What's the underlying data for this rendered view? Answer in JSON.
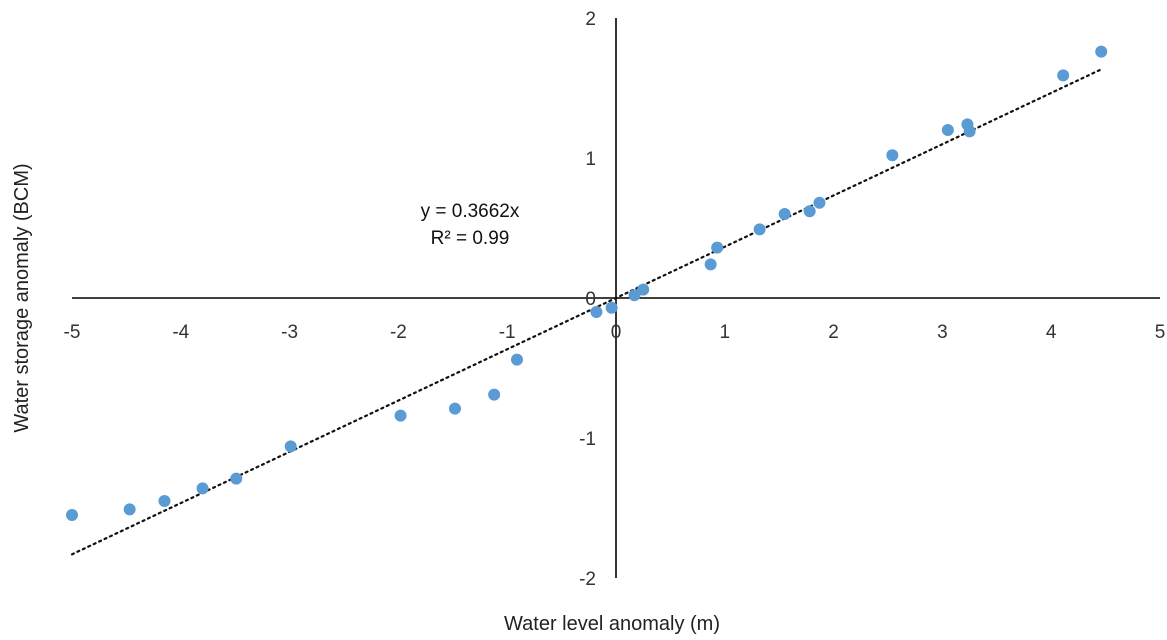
{
  "chart_data": {
    "type": "scatter",
    "xlabel": "Water level anomaly (m)",
    "ylabel": "Water storage anomaly (BCM)",
    "xlim": [
      -5,
      5
    ],
    "ylim": [
      -2,
      2
    ],
    "x_ticks": [
      "-5",
      "-4",
      "-3",
      "-2",
      "-1",
      "0",
      "1",
      "2",
      "3",
      "4",
      "5"
    ],
    "y_ticks": [
      "2",
      "1",
      "0",
      "-1",
      "-2"
    ],
    "grid": false,
    "point_color": "#5b9bd5",
    "trendline": {
      "type": "linear",
      "slope": 0.3662,
      "intercept": 0,
      "style": "dotted",
      "equation_label": "y = 0.3662x",
      "r2_label": "R² = 0.99"
    },
    "points": [
      {
        "x": -5.0,
        "y": -1.55
      },
      {
        "x": -4.47,
        "y": -1.51
      },
      {
        "x": -4.15,
        "y": -1.45
      },
      {
        "x": -3.8,
        "y": -1.36
      },
      {
        "x": -3.49,
        "y": -1.29
      },
      {
        "x": -2.99,
        "y": -1.06
      },
      {
        "x": -1.98,
        "y": -0.84
      },
      {
        "x": -1.48,
        "y": -0.79
      },
      {
        "x": -1.12,
        "y": -0.69
      },
      {
        "x": -0.91,
        "y": -0.44
      },
      {
        "x": -0.18,
        "y": -0.1
      },
      {
        "x": -0.04,
        "y": -0.07
      },
      {
        "x": 0.17,
        "y": 0.02
      },
      {
        "x": 0.25,
        "y": 0.06
      },
      {
        "x": 0.87,
        "y": 0.24
      },
      {
        "x": 0.93,
        "y": 0.36
      },
      {
        "x": 1.32,
        "y": 0.49
      },
      {
        "x": 1.55,
        "y": 0.6
      },
      {
        "x": 1.78,
        "y": 0.62
      },
      {
        "x": 1.87,
        "y": 0.68
      },
      {
        "x": 2.54,
        "y": 1.02
      },
      {
        "x": 3.05,
        "y": 1.2
      },
      {
        "x": 3.23,
        "y": 1.24
      },
      {
        "x": 3.25,
        "y": 1.19
      },
      {
        "x": 4.11,
        "y": 1.59
      },
      {
        "x": 4.46,
        "y": 1.76
      }
    ]
  }
}
